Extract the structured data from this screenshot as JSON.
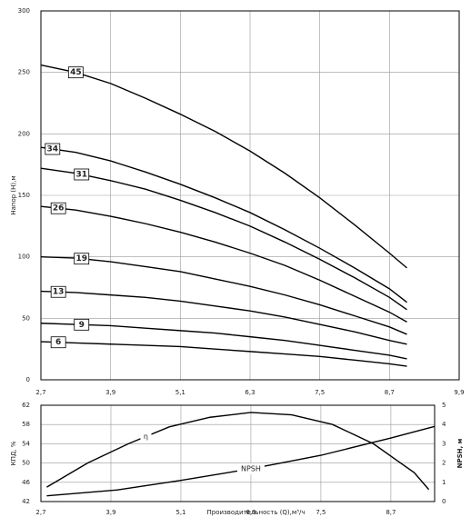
{
  "chart_data": [
    {
      "type": "line",
      "ylabel": "Напор (H),м",
      "xlim": [
        2.7,
        9.9
      ],
      "ylim": [
        0,
        300
      ],
      "xticks": [
        {
          "value": 2.7,
          "label": "2,7"
        },
        {
          "value": 3.9,
          "label": "3,9"
        },
        {
          "value": 5.1,
          "label": "5,1"
        },
        {
          "value": 6.3,
          "label": "6,3"
        },
        {
          "value": 7.5,
          "label": "7,5"
        },
        {
          "value": 8.7,
          "label": "8,7"
        },
        {
          "value": 9.9,
          "label": "9,9"
        }
      ],
      "yticks": [
        0,
        50,
        100,
        150,
        200,
        250,
        300
      ],
      "grid": true,
      "x": [
        2.7,
        3.3,
        3.9,
        4.5,
        5.1,
        5.7,
        6.3,
        6.9,
        7.5,
        8.1,
        8.7,
        9.0
      ],
      "series": [
        {
          "name": "45",
          "color": "#000000",
          "values": [
            256,
            250,
            241,
            229,
            216,
            202,
            186,
            168,
            148,
            126,
            103,
            91
          ]
        },
        {
          "name": "34",
          "color": "#000000",
          "values": [
            189,
            185,
            178,
            169,
            159,
            148,
            136,
            122,
            107,
            91,
            74,
            63
          ]
        },
        {
          "name": "31",
          "color": "#000000",
          "values": [
            172,
            168,
            162,
            155,
            146,
            136,
            125,
            112,
            98,
            83,
            67,
            57
          ]
        },
        {
          "name": "26",
          "color": "#000000",
          "values": [
            141,
            138,
            133,
            127,
            120,
            112,
            103,
            93,
            81,
            68,
            55,
            47
          ]
        },
        {
          "name": "19",
          "color": "#000000",
          "values": [
            100,
            99,
            96,
            92,
            88,
            82,
            76,
            69,
            61,
            52,
            43,
            37
          ]
        },
        {
          "name": "13",
          "color": "#000000",
          "values": [
            72,
            71,
            69,
            67,
            64,
            60,
            56,
            51,
            45,
            39,
            32,
            29
          ]
        },
        {
          "name": "9",
          "color": "#000000",
          "values": [
            46,
            45,
            44,
            42,
            40,
            38,
            35,
            32,
            28,
            24,
            20,
            17
          ]
        },
        {
          "name": "6",
          "color": "#000000",
          "values": [
            31,
            30,
            29,
            28,
            27,
            25,
            23,
            21,
            19,
            16,
            13,
            11
          ]
        }
      ]
    },
    {
      "type": "line",
      "xlabel": "Производительность (Q),м³/ч",
      "ylabel": "КПД, %",
      "y2label": "NPSH, м",
      "xlim": [
        2.7,
        9.45
      ],
      "ylim": [
        42,
        62
      ],
      "y2lim": [
        0,
        5
      ],
      "xticks": [
        {
          "value": 2.7,
          "label": "2,7"
        },
        {
          "value": 3.9,
          "label": "3,9"
        },
        {
          "value": 5.1,
          "label": "5,1"
        },
        {
          "value": 6.3,
          "label": "6,3"
        },
        {
          "value": 7.5,
          "label": "7,5"
        },
        {
          "value": 8.7,
          "label": "8,7"
        }
      ],
      "yticks": [
        42,
        46,
        50,
        54,
        58,
        62
      ],
      "y2ticks": [
        0,
        1,
        2,
        3,
        4,
        5
      ],
      "grid": true,
      "series": [
        {
          "name": "η",
          "color": "#000000",
          "x": [
            2.8,
            3.5,
            4.2,
            4.9,
            5.6,
            6.3,
            7.0,
            7.7,
            8.4,
            9.1,
            9.35
          ],
          "values": [
            45,
            50,
            54,
            57.5,
            59.5,
            60.5,
            60,
            58,
            54,
            48,
            44.5
          ]
        },
        {
          "name": "NPSH",
          "color": "#000000",
          "axis": "y2",
          "x": [
            2.8,
            4.0,
            5.1,
            6.3,
            7.5,
            8.7,
            9.45
          ],
          "values": [
            0.3,
            0.6,
            1.1,
            1.7,
            2.4,
            3.3,
            3.9
          ]
        }
      ]
    }
  ]
}
